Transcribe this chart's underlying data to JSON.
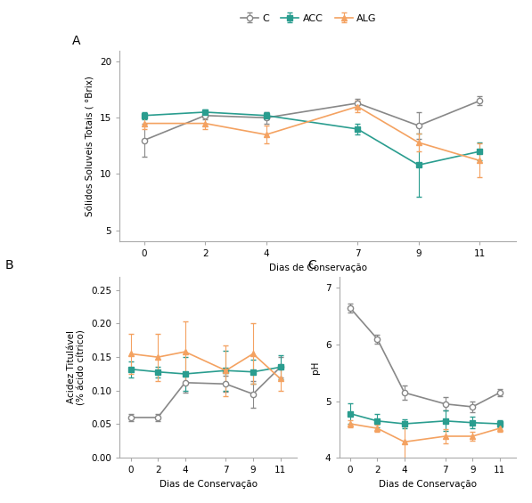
{
  "days": [
    0,
    2,
    4,
    7,
    9,
    11
  ],
  "series": {
    "C": {
      "color": "#888888",
      "marker": "o",
      "markersize": 4.5,
      "linewidth": 1.2,
      "A_mean": [
        13.0,
        15.2,
        15.0,
        16.3,
        14.3,
        16.5
      ],
      "A_err": [
        1.5,
        0.3,
        0.5,
        0.4,
        1.2,
        0.4
      ],
      "B_mean": [
        0.06,
        0.06,
        0.112,
        0.11,
        0.095,
        0.135
      ],
      "B_err": [
        0.005,
        0.005,
        0.015,
        0.012,
        0.02,
        0.015
      ],
      "C_mean": [
        6.65,
        6.1,
        5.15,
        4.95,
        4.9,
        5.15
      ],
      "C_err": [
        0.08,
        0.08,
        0.12,
        0.12,
        0.1,
        0.06
      ]
    },
    "ACC": {
      "color": "#2a9d8f",
      "marker": "s",
      "markersize": 4.5,
      "linewidth": 1.2,
      "A_mean": [
        15.2,
        15.5,
        15.2,
        14.0,
        10.8,
        12.0
      ],
      "A_err": [
        0.3,
        0.2,
        0.3,
        0.5,
        2.8,
        0.8
      ],
      "B_mean": [
        0.132,
        0.128,
        0.125,
        0.13,
        0.128,
        0.135
      ],
      "B_err": [
        0.012,
        0.008,
        0.025,
        0.03,
        0.018,
        0.018
      ],
      "C_mean": [
        4.78,
        4.65,
        4.6,
        4.65,
        4.62,
        4.6
      ],
      "C_err": [
        0.18,
        0.12,
        0.08,
        0.18,
        0.1,
        0.06
      ]
    },
    "ALG": {
      "color": "#f4a261",
      "marker": "^",
      "markersize": 4.5,
      "linewidth": 1.2,
      "A_mean": [
        14.5,
        14.5,
        13.5,
        16.0,
        12.8,
        11.2
      ],
      "A_err": [
        0.5,
        0.5,
        0.8,
        0.5,
        0.8,
        1.5
      ],
      "B_mean": [
        0.155,
        0.15,
        0.158,
        0.13,
        0.155,
        0.118
      ],
      "B_err": [
        0.03,
        0.035,
        0.045,
        0.038,
        0.045,
        0.018
      ],
      "C_mean": [
        4.6,
        4.52,
        4.28,
        4.38,
        4.38,
        4.52
      ],
      "C_err": [
        0.06,
        0.06,
        0.35,
        0.12,
        0.08,
        0.06
      ]
    }
  },
  "legend_labels": [
    "C",
    "ACC",
    "ALG"
  ],
  "A_ylabel": "Sólidos Soluveis Totais ( °Brix)",
  "B_ylabel": "Acidez Titulável\n(% ácido cítrico)",
  "C_ylabel": "pH",
  "xlabel": "Dias de Conservação",
  "A_ylim": [
    4,
    21
  ],
  "A_yticks": [
    5,
    10,
    15,
    20
  ],
  "B_ylim": [
    0.0,
    0.27
  ],
  "B_yticks": [
    0.0,
    0.05,
    0.1,
    0.15,
    0.2,
    0.25
  ],
  "C_ylim": [
    4.0,
    7.2
  ],
  "C_yticks": [
    4,
    5,
    6,
    7
  ],
  "panel_labels": [
    "A",
    "B",
    "C"
  ],
  "bg_color": "#ffffff",
  "spine_color": "#aaaaaa"
}
